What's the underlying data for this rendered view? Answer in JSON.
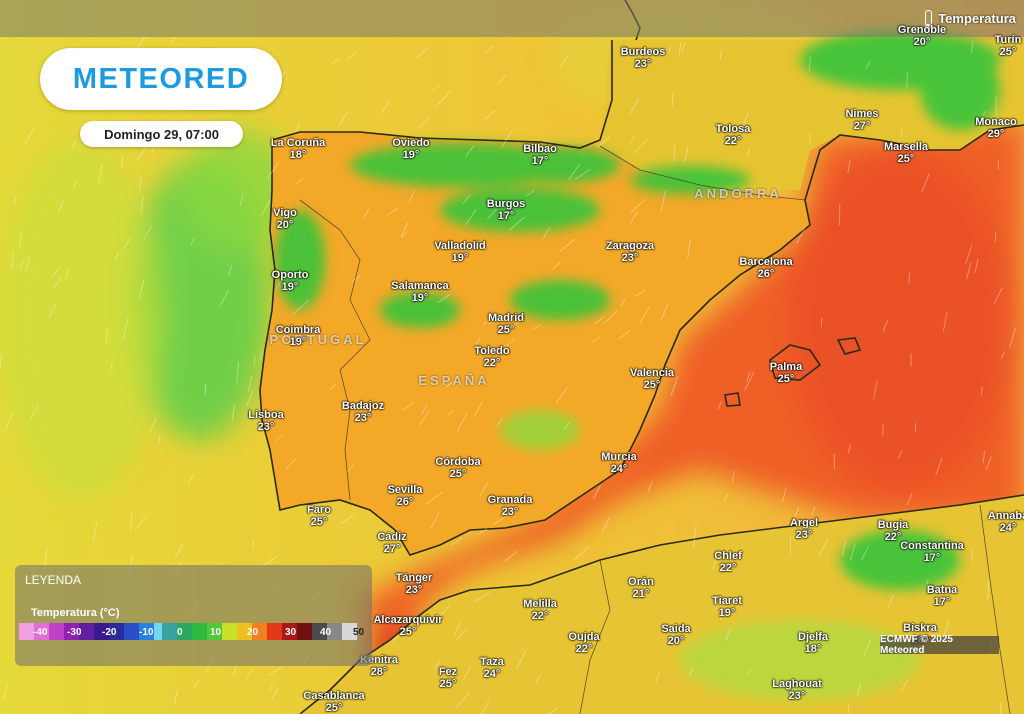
{
  "header": {
    "layer_label": "Temperatura",
    "layer_icon": "thermometer-icon"
  },
  "logo": {
    "text": "METEORED",
    "color": "#1e9be0"
  },
  "date": "Domingo 29, 07:00",
  "countries": [
    {
      "name": "PORTUGAL"
    },
    {
      "name": "ESPAÑA"
    },
    {
      "name": "ANDORRA"
    }
  ],
  "cities": [
    {
      "name": "Burdeos",
      "temp": "23°"
    },
    {
      "name": "Grenoble",
      "temp": "20°"
    },
    {
      "name": "Turín",
      "temp": "25°"
    },
    {
      "name": "La Coruña",
      "temp": "18°"
    },
    {
      "name": "Oviedo",
      "temp": "19°"
    },
    {
      "name": "Bilbao",
      "temp": "17°"
    },
    {
      "name": "Tolosa",
      "temp": "22°"
    },
    {
      "name": "Nimes",
      "temp": "27°"
    },
    {
      "name": "Marsella",
      "temp": "25°"
    },
    {
      "name": "Monaco",
      "temp": "29°"
    },
    {
      "name": "Vigo",
      "temp": "20°"
    },
    {
      "name": "Burgos",
      "temp": "17°"
    },
    {
      "name": "Valladolid",
      "temp": "19°"
    },
    {
      "name": "Zaragoza",
      "temp": "23°"
    },
    {
      "name": "Barcelona",
      "temp": "26°"
    },
    {
      "name": "Oporto",
      "temp": "19°"
    },
    {
      "name": "Salamanca",
      "temp": "19°"
    },
    {
      "name": "Madrid",
      "temp": "25°"
    },
    {
      "name": "Coimbra",
      "temp": "19°"
    },
    {
      "name": "Toledo",
      "temp": "22°"
    },
    {
      "name": "Valencia",
      "temp": "25°"
    },
    {
      "name": "Palma",
      "temp": "25°"
    },
    {
      "name": "Lisboa",
      "temp": "23°"
    },
    {
      "name": "Badajoz",
      "temp": "23°"
    },
    {
      "name": "Córdoba",
      "temp": "25°"
    },
    {
      "name": "Murcia",
      "temp": "24°"
    },
    {
      "name": "Sevilla",
      "temp": "26°"
    },
    {
      "name": "Faro",
      "temp": "25°"
    },
    {
      "name": "Granada",
      "temp": "23°"
    },
    {
      "name": "Cádiz",
      "temp": "27°"
    },
    {
      "name": "Argel",
      "temp": "23°"
    },
    {
      "name": "Bugia",
      "temp": "22°"
    },
    {
      "name": "Annaba",
      "temp": "24°"
    },
    {
      "name": "Constantina",
      "temp": "17°"
    },
    {
      "name": "Chlef",
      "temp": "22°"
    },
    {
      "name": "Tánger",
      "temp": "23°"
    },
    {
      "name": "Orán",
      "temp": "21°"
    },
    {
      "name": "Tiaret",
      "temp": "19°"
    },
    {
      "name": "Batna",
      "temp": "17°"
    },
    {
      "name": "Alcazarquivir",
      "temp": "25°"
    },
    {
      "name": "Melilla",
      "temp": "22°"
    },
    {
      "name": "Saida",
      "temp": "20°"
    },
    {
      "name": "Oujda",
      "temp": "22°"
    },
    {
      "name": "Djelfa",
      "temp": "18°"
    },
    {
      "name": "Biskra",
      "temp": "26°"
    },
    {
      "name": "Kenitra",
      "temp": "28°"
    },
    {
      "name": "Fez",
      "temp": "25°"
    },
    {
      "name": "Taza",
      "temp": "24°"
    },
    {
      "name": "Laghouat",
      "temp": "23°"
    },
    {
      "name": "Casablanca",
      "temp": "25°"
    }
  ],
  "legend": {
    "title": "LEYENDA",
    "subtitle": "Temperatura (°C)",
    "stops": [
      "-40",
      "-30",
      "-20",
      "-10",
      "0",
      "10",
      "20",
      "30",
      "40",
      "50"
    ]
  },
  "credit": "ECMWF © 2025 Meteored",
  "colors": {
    "sea_warm": "#f06a2a",
    "land_hot": "#f0a020",
    "cool_green": "#3ec43a",
    "ocean_yellow": "#e8d83c"
  }
}
